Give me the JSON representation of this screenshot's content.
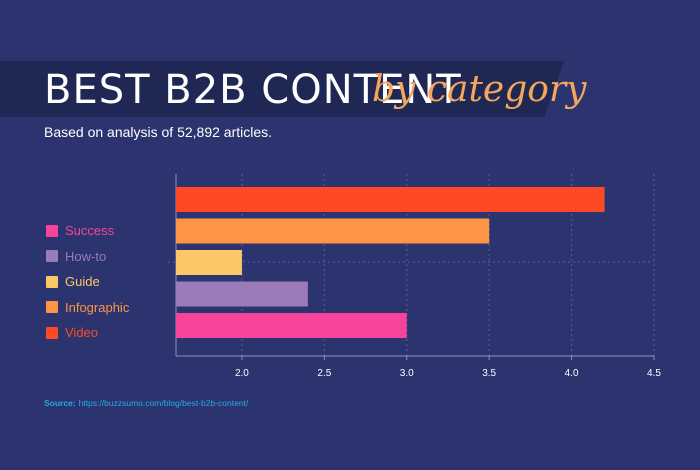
{
  "header": {
    "title_main": "BEST B2B CONTENT",
    "title_script": "by category",
    "subtitle": "Based on analysis of 52,892 articles."
  },
  "legend": [
    {
      "label": "Success",
      "color": "#f6449a"
    },
    {
      "label": "How-to",
      "color": "#9b7bb8"
    },
    {
      "label": "Guide",
      "color": "#fdc767"
    },
    {
      "label": "Infographic",
      "color": "#fd9545"
    },
    {
      "label": "Video",
      "color": "#fd4a25"
    }
  ],
  "source": {
    "label": "Source:",
    "url": "https://buzzsumo.com/blog/best-b2b-content/"
  },
  "chart_data": {
    "type": "bar",
    "orientation": "horizontal",
    "categories": [
      "Video",
      "Infographic",
      "Guide",
      "How-to",
      "Success"
    ],
    "values": [
      4.2,
      3.5,
      2.0,
      2.4,
      3.0
    ],
    "colors": [
      "#fd4a25",
      "#fd9545",
      "#fdc767",
      "#9b7bb8",
      "#f6449a"
    ],
    "xlim": [
      1.6,
      4.5
    ],
    "xticks": [
      "2.0",
      "2.5",
      "3.0",
      "3.5",
      "4.0",
      "4.5"
    ],
    "xtick_values": [
      2.0,
      2.5,
      3.0,
      3.5,
      4.0,
      4.5
    ],
    "grid": true
  }
}
